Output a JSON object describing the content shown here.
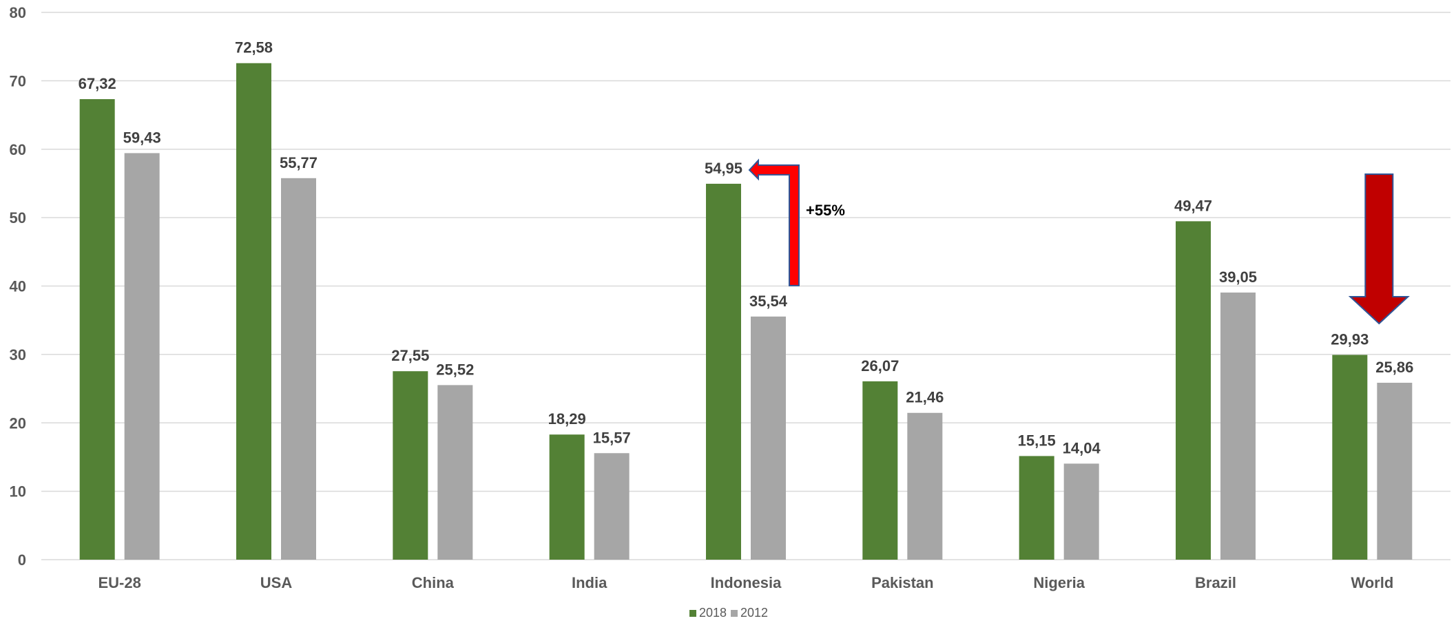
{
  "chart_data": {
    "type": "bar",
    "categories": [
      "EU-28",
      "USA",
      "China",
      "India",
      "Indonesia",
      "Pakistan",
      "Nigeria",
      "Brazil",
      "World"
    ],
    "series": [
      {
        "name": "2018",
        "color": "#538135",
        "values": [
          67.32,
          72.58,
          27.55,
          18.29,
          54.95,
          26.07,
          15.15,
          49.47,
          29.93
        ],
        "labels": [
          "67,32",
          "72,58",
          "27,55",
          "18,29",
          "54,95",
          "26,07",
          "15,15",
          "49,47",
          "29,93"
        ]
      },
      {
        "name": "2012",
        "color": "#a6a6a6",
        "values": [
          59.43,
          55.77,
          25.52,
          15.57,
          35.54,
          21.46,
          14.04,
          39.05,
          25.86
        ],
        "labels": [
          "59,43",
          "55,77",
          "25,52",
          "15,57",
          "35,54",
          "21,46",
          "14,04",
          "39,05",
          "25,86"
        ]
      }
    ],
    "ylim": [
      0,
      80
    ],
    "yticks": [
      0,
      10,
      20,
      30,
      40,
      50,
      60,
      70,
      80
    ],
    "title": "",
    "xlabel": "",
    "ylabel": "",
    "grid": true,
    "legend_position": "bottom",
    "annotations": [
      {
        "text": "+55%",
        "category": "Indonesia",
        "arrow": "up-then-left",
        "color": "#ff0000"
      },
      {
        "text": "",
        "category": "World",
        "arrow": "down",
        "color": "#c00000"
      }
    ]
  }
}
